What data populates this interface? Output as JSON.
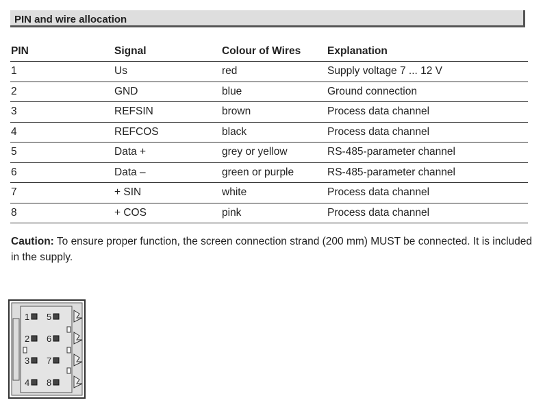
{
  "section_title": "PIN and wire allocation",
  "table": {
    "headers": [
      "PIN",
      "Signal",
      "Colour of Wires",
      "Explanation"
    ],
    "rows": [
      [
        "1",
        "Us",
        "red",
        "Supply voltage 7 ... 12 V"
      ],
      [
        "2",
        "GND",
        "blue",
        "Ground connection"
      ],
      [
        "3",
        "REFSIN",
        "brown",
        "Process data channel"
      ],
      [
        "4",
        "REFCOS",
        "black",
        "Process data channel"
      ],
      [
        "5",
        "Data +",
        "grey or yellow",
        "RS-485-parameter channel"
      ],
      [
        "6",
        "Data –",
        "green or purple",
        "RS-485-parameter channel"
      ],
      [
        "7",
        "+ SIN",
        "white",
        "Process data channel"
      ],
      [
        "8",
        "+ COS",
        "pink",
        "Process data channel"
      ]
    ]
  },
  "caution": {
    "label": "Caution:",
    "text": " To ensure proper function, the screen connection strand (200 mm) MUST be connected. It is included in the supply."
  },
  "connector": {
    "pins_left": [
      "1",
      "2",
      "3",
      "4"
    ],
    "pins_right": [
      "5",
      "6",
      "7",
      "8"
    ]
  }
}
